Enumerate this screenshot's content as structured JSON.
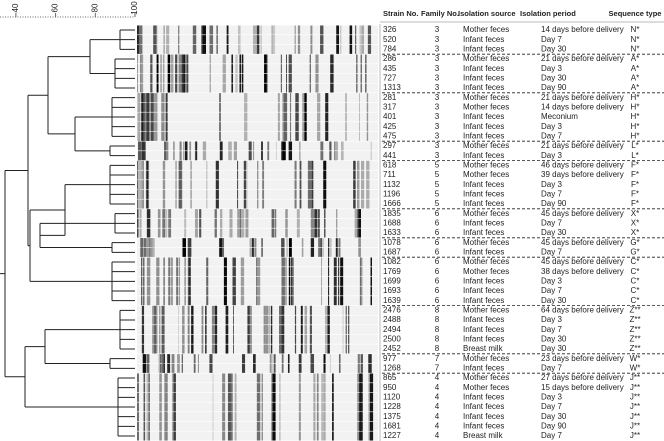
{
  "scale": {
    "xlim": [
      32,
      100
    ],
    "xticks": [
      40,
      60,
      80,
      100
    ]
  },
  "table": {
    "columns": [
      "Strain No.",
      "Family No.",
      "Isolation source",
      "Isolation period",
      "Sequence type"
    ],
    "source_colors": {
      "Mother feces": "#d42a2a",
      "Infant feces": "#1f6fbf",
      "Breast milk": "#1f9a3c"
    },
    "rows": [
      [
        "326",
        "3",
        "Mother feces",
        "14 days before delivery",
        "N*"
      ],
      [
        "520",
        "3",
        "Infant feces",
        "Day 7",
        "N*"
      ],
      [
        "784",
        "3",
        "Infant feces",
        "Day 30",
        "N*"
      ],
      [
        "286",
        "3",
        "Mother feces",
        "21 days before delivery",
        "A*"
      ],
      [
        "435",
        "3",
        "Infant feces",
        "Day 3",
        "A*"
      ],
      [
        "727",
        "3",
        "Infant feces",
        "Day 30",
        "A*"
      ],
      [
        "1313",
        "3",
        "Infant feces",
        "Day 90",
        "A*"
      ],
      [
        "281",
        "3",
        "Mother feces",
        "21 days before delivery",
        "H*"
      ],
      [
        "317",
        "3",
        "Mother feces",
        "14 days before delivery",
        "H*"
      ],
      [
        "401",
        "3",
        "Infant feces",
        "Meconium",
        "H*"
      ],
      [
        "425",
        "3",
        "Infant feces",
        "Day 3",
        "H*"
      ],
      [
        "475",
        "3",
        "Infant feces",
        "Day 7",
        "H*"
      ],
      [
        "297",
        "3",
        "Mother feces",
        "21 days before delivery",
        "L*"
      ],
      [
        "441",
        "3",
        "Infant feces",
        "Day 3",
        "L*"
      ],
      [
        "618",
        "5",
        "Mother feces",
        "46 days before delivery",
        "F*"
      ],
      [
        "711",
        "5",
        "Mother feces",
        "39 days before delivery",
        "F*"
      ],
      [
        "1132",
        "5",
        "Infant feces",
        "Day 3",
        "F*"
      ],
      [
        "1196",
        "5",
        "Infant feces",
        "Day 7",
        "F*"
      ],
      [
        "1666",
        "5",
        "Infant feces",
        "Day 90",
        "F*"
      ],
      [
        "1835",
        "6",
        "Mother feces",
        "45 days before delivery",
        "X*"
      ],
      [
        "1688",
        "6",
        "Infant feces",
        "Day 7",
        "X*"
      ],
      [
        "1633",
        "6",
        "Infant feces",
        "Day 30",
        "X*"
      ],
      [
        "1078",
        "6",
        "Mother feces",
        "45 days before delivery",
        "G*"
      ],
      [
        "1687",
        "6",
        "Infant feces",
        "Day 7",
        "G*"
      ],
      [
        "1082",
        "6",
        "Mother feces",
        "45 days before delivery",
        "C*"
      ],
      [
        "1769",
        "6",
        "Mother feces",
        "38 days before delivery",
        "C*"
      ],
      [
        "1699",
        "6",
        "Infant feces",
        "Day 3",
        "C*"
      ],
      [
        "1693",
        "6",
        "Infant feces",
        "Day 7",
        "C*"
      ],
      [
        "1639",
        "6",
        "Infant feces",
        "Day 30",
        "C*"
      ],
      [
        "2476",
        "8",
        "Mother feces",
        "64 days before delivery",
        "Z**"
      ],
      [
        "2488",
        "8",
        "Infant feces",
        "Day 3",
        "Z**"
      ],
      [
        "2494",
        "8",
        "Infant feces",
        "Day 7",
        "Z**"
      ],
      [
        "2500",
        "8",
        "Infant feces",
        "Day 30",
        "Z**"
      ],
      [
        "2452",
        "8",
        "Breast milk",
        "Day 30",
        "Z**"
      ],
      [
        "977",
        "7",
        "Mother feces",
        "23 days before delivery",
        "W*"
      ],
      [
        "1268",
        "7",
        "Infant feces",
        "Day 7",
        "W*"
      ],
      [
        "865",
        "4",
        "Mother feces",
        "27 days before delivery",
        "J**"
      ],
      [
        "950",
        "4",
        "Mother feces",
        "15 days before delivery",
        "J**"
      ],
      [
        "1120",
        "4",
        "Infant feces",
        "Day 3",
        "J**"
      ],
      [
        "1228",
        "4",
        "Infant feces",
        "Day 7",
        "J**"
      ],
      [
        "1375",
        "4",
        "Infant feces",
        "Day 30",
        "J**"
      ],
      [
        "1681",
        "4",
        "Infant feces",
        "Day 90",
        "J**"
      ],
      [
        "1227",
        "4",
        "Breast milk",
        "Day 7",
        "J**"
      ]
    ]
  }
}
